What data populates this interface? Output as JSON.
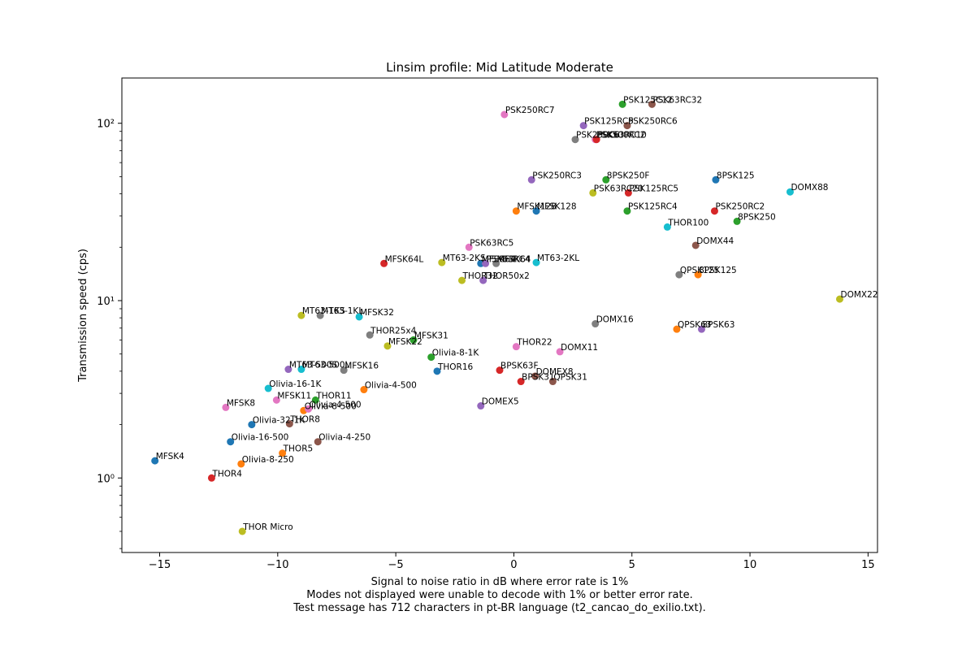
{
  "chart_data": {
    "type": "scatter",
    "title": "Linsim profile: Mid Latitude Moderate",
    "xlabel_lines": [
      "Signal to noise ratio in dB where error rate is 1%",
      "Modes not displayed were unable to decode with 1% or better error rate.",
      "Test message has 712 characters in pt-BR language (t2_cancao_do_exilio.txt)."
    ],
    "ylabel": "Transmission speed (cps)",
    "xlim": [
      -16.6,
      15.4
    ],
    "ylim": [
      0.38,
      180
    ],
    "yscale": "log",
    "xticks": [
      -15,
      -10,
      -5,
      0,
      5,
      10,
      15
    ],
    "xtick_labels": [
      "−15",
      "−10",
      "−5",
      "0",
      "5",
      "10",
      "15"
    ],
    "yticks": [
      1,
      10,
      100
    ],
    "ytick_labels": [
      "10⁰",
      "10¹",
      "10²"
    ],
    "grid": false,
    "palette": [
      "#1f77b4",
      "#ff7f0e",
      "#2ca02c",
      "#d62728",
      "#9467bd",
      "#8c564b",
      "#e377c2",
      "#7f7f7f",
      "#bcbd22",
      "#17becf"
    ],
    "points": [
      {
        "label": "MFSK4",
        "x": -15.2,
        "y": 1.25,
        "color": "#1f77b4"
      },
      {
        "label": "THOR4",
        "x": -12.8,
        "y": 1.0,
        "color": "#d62728"
      },
      {
        "label": "THOR Micro",
        "x": -11.5,
        "y": 0.5,
        "color": "#bcbd22"
      },
      {
        "label": "Olivia-8-250",
        "x": -11.55,
        "y": 1.2,
        "color": "#ff7f0e"
      },
      {
        "label": "Olivia-16-500",
        "x": -12.0,
        "y": 1.6,
        "color": "#1f77b4"
      },
      {
        "label": "MFSK8",
        "x": -12.2,
        "y": 2.5,
        "color": "#e377c2"
      },
      {
        "label": "Olivia-32-1K",
        "x": -11.1,
        "y": 2.0,
        "color": "#1f77b4"
      },
      {
        "label": "THOR5",
        "x": -9.8,
        "y": 1.38,
        "color": "#ff7f0e"
      },
      {
        "label": "THOR8",
        "x": -9.5,
        "y": 2.02,
        "color": "#8c564b"
      },
      {
        "label": "MFSK11",
        "x": -10.05,
        "y": 2.75,
        "color": "#e377c2"
      },
      {
        "label": "Olivia-16-1K",
        "x": -10.4,
        "y": 3.2,
        "color": "#17becf"
      },
      {
        "label": "Olivia-4-250",
        "x": -8.3,
        "y": 1.6,
        "color": "#8c564b"
      },
      {
        "label": "Olivia-8-500",
        "x": -8.9,
        "y": 2.4,
        "color": "#ff7f0e"
      },
      {
        "label": "Olivia-4-500",
        "x": -8.7,
        "y": 2.45,
        "color": "#e377c2"
      },
      {
        "label": "THOR11",
        "x": -8.4,
        "y": 2.75,
        "color": "#2ca02c"
      },
      {
        "label": "MT63-500S",
        "x": -9.55,
        "y": 4.1,
        "color": "#9467bd"
      },
      {
        "label": "MT63-500L",
        "x": -9.0,
        "y": 4.1,
        "color": "#17becf"
      },
      {
        "label": "MFSK16",
        "x": -7.2,
        "y": 4.05,
        "color": "#7f7f7f"
      },
      {
        "label": "MT63-1KS",
        "x": -9.0,
        "y": 8.25,
        "color": "#bcbd22"
      },
      {
        "label": "MT63-1KL",
        "x": -8.2,
        "y": 8.25,
        "color": "#7f7f7f"
      },
      {
        "label": "MFSK32",
        "x": -6.55,
        "y": 8.1,
        "color": "#17becf"
      },
      {
        "label": "Olivia-4-500",
        "x": -6.35,
        "y": 3.15,
        "color": "#ff7f0e"
      },
      {
        "label": "THOR25x4",
        "x": -6.1,
        "y": 6.4,
        "color": "#7f7f7f"
      },
      {
        "label": "MFSK22",
        "x": -5.35,
        "y": 5.55,
        "color": "#bcbd22"
      },
      {
        "label": "MFSK31",
        "x": -4.25,
        "y": 6.0,
        "color": "#2ca02c"
      },
      {
        "label": "MFSK64L",
        "x": -5.5,
        "y": 16.2,
        "color": "#d62728"
      },
      {
        "label": "Olivia-8-1K",
        "x": -3.5,
        "y": 4.8,
        "color": "#2ca02c"
      },
      {
        "label": "THOR16",
        "x": -3.25,
        "y": 4.0,
        "color": "#1f77b4"
      },
      {
        "label": "MT63-2KS",
        "x": -3.05,
        "y": 16.4,
        "color": "#bcbd22"
      },
      {
        "label": "THOR32",
        "x": -2.2,
        "y": 13.0,
        "color": "#bcbd22"
      },
      {
        "label": "THOR50x2",
        "x": -1.3,
        "y": 13.0,
        "color": "#9467bd"
      },
      {
        "label": "PSK63RC5",
        "x": -1.9,
        "y": 20.0,
        "color": "#e377c2"
      },
      {
        "label": "MFSK64",
        "x": -1.4,
        "y": 16.2,
        "color": "#1f77b4"
      },
      {
        "label": "PSK63RC4",
        "x": -1.2,
        "y": 16.2,
        "color": "#9467bd"
      },
      {
        "label": "MFSK64",
        "x": -0.75,
        "y": 16.2,
        "color": "#7f7f7f"
      },
      {
        "label": "DOMEX5",
        "x": -1.4,
        "y": 2.55,
        "color": "#9467bd"
      },
      {
        "label": "BPSK63F",
        "x": -0.6,
        "y": 4.05,
        "color": "#d62728"
      },
      {
        "label": "BPSK31",
        "x": 0.3,
        "y": 3.5,
        "color": "#d62728"
      },
      {
        "label": "DOMEX8",
        "x": 0.9,
        "y": 3.75,
        "color": "#8c564b"
      },
      {
        "label": "QPSK31",
        "x": 1.65,
        "y": 3.5,
        "color": "#8c564b"
      },
      {
        "label": "THOR22",
        "x": 0.1,
        "y": 5.5,
        "color": "#e377c2"
      },
      {
        "label": "DOMX11",
        "x": 1.95,
        "y": 5.15,
        "color": "#e377c2"
      },
      {
        "label": "MT63-2KL",
        "x": 0.95,
        "y": 16.4,
        "color": "#17becf"
      },
      {
        "label": "MFSK128",
        "x": 0.1,
        "y": 32.0,
        "color": "#ff7f0e"
      },
      {
        "label": "MFSK128",
        "x": 0.95,
        "y": 32.0,
        "color": "#1f77b4"
      },
      {
        "label": "PSK250RC7",
        "x": -0.4,
        "y": 112.0,
        "color": "#e377c2"
      },
      {
        "label": "PSK250RC3",
        "x": 0.75,
        "y": 48.0,
        "color": "#9467bd"
      },
      {
        "label": "PSK250C6",
        "x": 2.6,
        "y": 81.0,
        "color": "#7f7f7f"
      },
      {
        "label": "PSK500RC2",
        "x": 3.45,
        "y": 81.0,
        "color": "#e377c2"
      },
      {
        "label": "PSK63RC10",
        "x": 3.5,
        "y": 81.0,
        "color": "#d62728"
      },
      {
        "label": "PSK125RC5",
        "x": 2.95,
        "y": 97.0,
        "color": "#9467bd"
      },
      {
        "label": "PSK250RC6",
        "x": 4.8,
        "y": 97.0,
        "color": "#8c564b"
      },
      {
        "label": "PSK125C12",
        "x": 4.6,
        "y": 128.0,
        "color": "#2ca02c"
      },
      {
        "label": "PSK63RC32",
        "x": 5.85,
        "y": 128.0,
        "color": "#8c564b"
      },
      {
        "label": "PSK63RC20",
        "x": 3.35,
        "y": 40.5,
        "color": "#bcbd22"
      },
      {
        "label": "8PSK250F",
        "x": 3.9,
        "y": 48.0,
        "color": "#2ca02c"
      },
      {
        "label": "PSK125RC5",
        "x": 4.85,
        "y": 40.5,
        "color": "#d62728"
      },
      {
        "label": "DOMX16",
        "x": 3.45,
        "y": 7.4,
        "color": "#7f7f7f"
      },
      {
        "label": "PSK125RC4",
        "x": 4.8,
        "y": 32.0,
        "color": "#2ca02c"
      },
      {
        "label": "THOR100",
        "x": 6.5,
        "y": 26.0,
        "color": "#17becf"
      },
      {
        "label": "QPSK63",
        "x": 6.9,
        "y": 6.9,
        "color": "#ff7f0e"
      },
      {
        "label": "8PSK63",
        "x": 7.95,
        "y": 6.9,
        "color": "#9467bd"
      },
      {
        "label": "QPSK125",
        "x": 7.0,
        "y": 14.0,
        "color": "#7f7f7f"
      },
      {
        "label": "8PSK125",
        "x": 7.8,
        "y": 14.0,
        "color": "#ff7f0e"
      },
      {
        "label": "DOMX44",
        "x": 7.7,
        "y": 20.5,
        "color": "#8c564b"
      },
      {
        "label": "8PSK125",
        "x": 8.55,
        "y": 48.0,
        "color": "#1f77b4"
      },
      {
        "label": "PSK250RC2",
        "x": 8.5,
        "y": 32.0,
        "color": "#d62728"
      },
      {
        "label": "8PSK250",
        "x": 9.45,
        "y": 28.0,
        "color": "#2ca02c"
      },
      {
        "label": "DOMX88",
        "x": 11.7,
        "y": 41.0,
        "color": "#17becf"
      },
      {
        "label": "DOMX22",
        "x": 13.8,
        "y": 10.2,
        "color": "#bcbd22"
      }
    ]
  }
}
